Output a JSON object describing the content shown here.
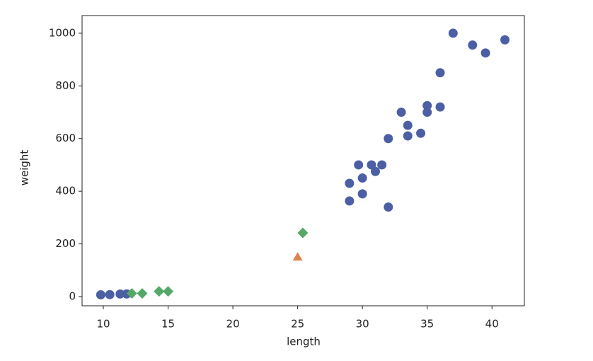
{
  "chart_data": {
    "type": "scatter",
    "xlabel": "length",
    "ylabel": "weight",
    "xlim": [
      8.36,
      42.5
    ],
    "ylim": [
      -35,
      1067
    ],
    "xticks": [
      10,
      15,
      20,
      25,
      30,
      35,
      40
    ],
    "yticks": [
      0,
      200,
      400,
      600,
      800,
      1000
    ],
    "series": [
      {
        "color": "#4c5fa5",
        "marker": "circle",
        "x": [
          29.0,
          29.0,
          29.7,
          30.0,
          30.0,
          30.7,
          31.0,
          31.5,
          32.0,
          32.0,
          33.0,
          33.5,
          33.5,
          34.5,
          35.0,
          35.0,
          36.0,
          36.0,
          37.0,
          38.5,
          39.5,
          41.0,
          9.8,
          10.5,
          11.3,
          11.8
        ],
        "values": [
          430,
          363,
          500,
          450,
          390,
          500,
          475,
          500,
          600,
          340,
          700,
          650,
          610,
          620,
          725,
          700,
          720,
          850,
          1000,
          955,
          925,
          975,
          6.7,
          7.5,
          9.8,
          9.9
        ]
      },
      {
        "color": "#dd8452",
        "marker": "triangle",
        "x": [
          25
        ],
        "values": [
          150
        ]
      },
      {
        "color": "#55a868",
        "marker": "diamond",
        "x": [
          25.4,
          15.0,
          14.3,
          13.0,
          12.2
        ],
        "values": [
          242,
          19.9,
          19.7,
          12.2,
          12.2
        ]
      }
    ]
  }
}
